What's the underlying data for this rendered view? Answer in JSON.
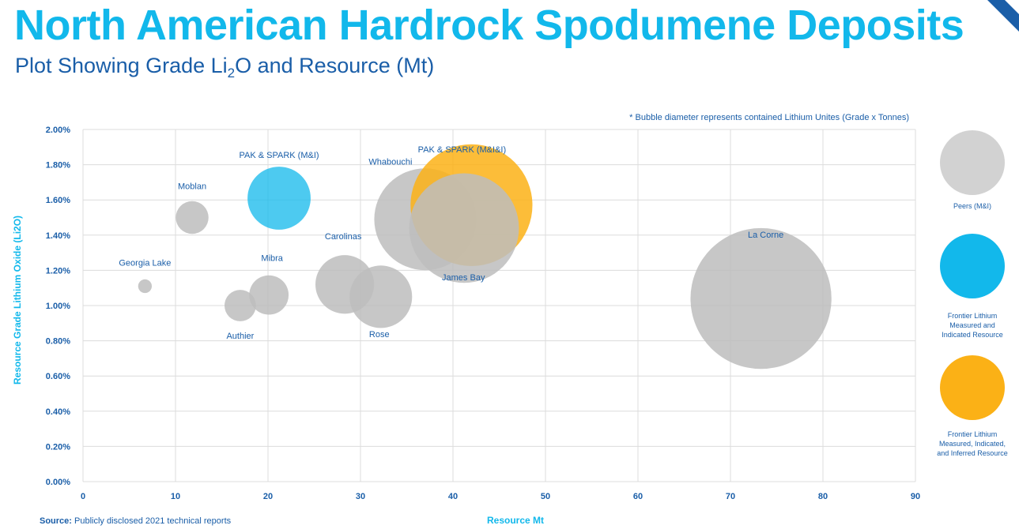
{
  "title": "North American Hardrock Spodumene Deposits",
  "subtitle_main": "Plot Showing Grade Li",
  "subtitle_sub": "2",
  "subtitle_end": "O and Resource (Mt)",
  "note": "* Bubble diameter represents contained Lithium Unites (Grade x Tonnes)",
  "source_label": "Source:",
  "source_text": " Publicly disclosed 2021 technical reports",
  "colors": {
    "peers": "#bdbdbd",
    "frontier_mi": "#12b8eb",
    "frontier_mii": "#fbb116",
    "title": "#12b8eb",
    "text": "#1a5ea8"
  },
  "legend": [
    {
      "label": "Peers (M&I)",
      "color": "#d2d2d2"
    },
    {
      "label": "Frontier Lithium Measured and Indicated Resource",
      "color": "#12b8eb"
    },
    {
      "label": "Frontier Lithium Measured, Indicated, and Inferred Resource",
      "color": "#fbb116"
    }
  ],
  "chart_data": {
    "type": "scatter",
    "xlabel": "Resource Mt",
    "ylabel": "Resource Grade Lithium Oxide (Li2O)",
    "xlim": [
      0,
      90
    ],
    "ylim": [
      0,
      0.02
    ],
    "x_ticks": [
      "0",
      "10",
      "20",
      "30",
      "40",
      "50",
      "60",
      "70",
      "80",
      "90"
    ],
    "y_ticks": [
      "0.00%",
      "0.20%",
      "0.40%",
      "0.60%",
      "0.80%",
      "1.00%",
      "1.20%",
      "1.40%",
      "1.60%",
      "1.80%",
      "2.00%"
    ],
    "grid": true,
    "points": [
      {
        "name": "Georgia Lake",
        "x": 6.7,
        "y": 0.0111,
        "size": 0.074,
        "group": "peers"
      },
      {
        "name": "Moblan",
        "x": 11.8,
        "y": 0.015,
        "size": 0.177,
        "group": "peers"
      },
      {
        "name": "Authier",
        "x": 17.0,
        "y": 0.01,
        "size": 0.17,
        "group": "peers"
      },
      {
        "name": "Mibra",
        "x": 20.1,
        "y": 0.0106,
        "size": 0.213,
        "group": "peers"
      },
      {
        "name": "Carolinas",
        "x": 28.3,
        "y": 0.0112,
        "size": 0.317,
        "group": "peers"
      },
      {
        "name": "Rose",
        "x": 32.2,
        "y": 0.0105,
        "size": 0.338,
        "group": "peers"
      },
      {
        "name": "Whabouchi",
        "x": 37.0,
        "y": 0.0149,
        "size": 0.551,
        "group": "peers"
      },
      {
        "name": "PAK & SPARK (M&I)",
        "x": 21.2,
        "y": 0.0161,
        "size": 0.341,
        "group": "frontier_mi"
      },
      {
        "name": "PAK & SPARK (M&I&I)",
        "x": 42.0,
        "y": 0.0157,
        "size": 0.659,
        "group": "frontier_mii"
      },
      {
        "name": "James Bay",
        "x": 41.2,
        "y": 0.0144,
        "size": 0.593,
        "group": "peers"
      },
      {
        "name": "La Corne",
        "x": 73.3,
        "y": 0.0104,
        "size": 0.762,
        "group": "peers"
      }
    ]
  }
}
